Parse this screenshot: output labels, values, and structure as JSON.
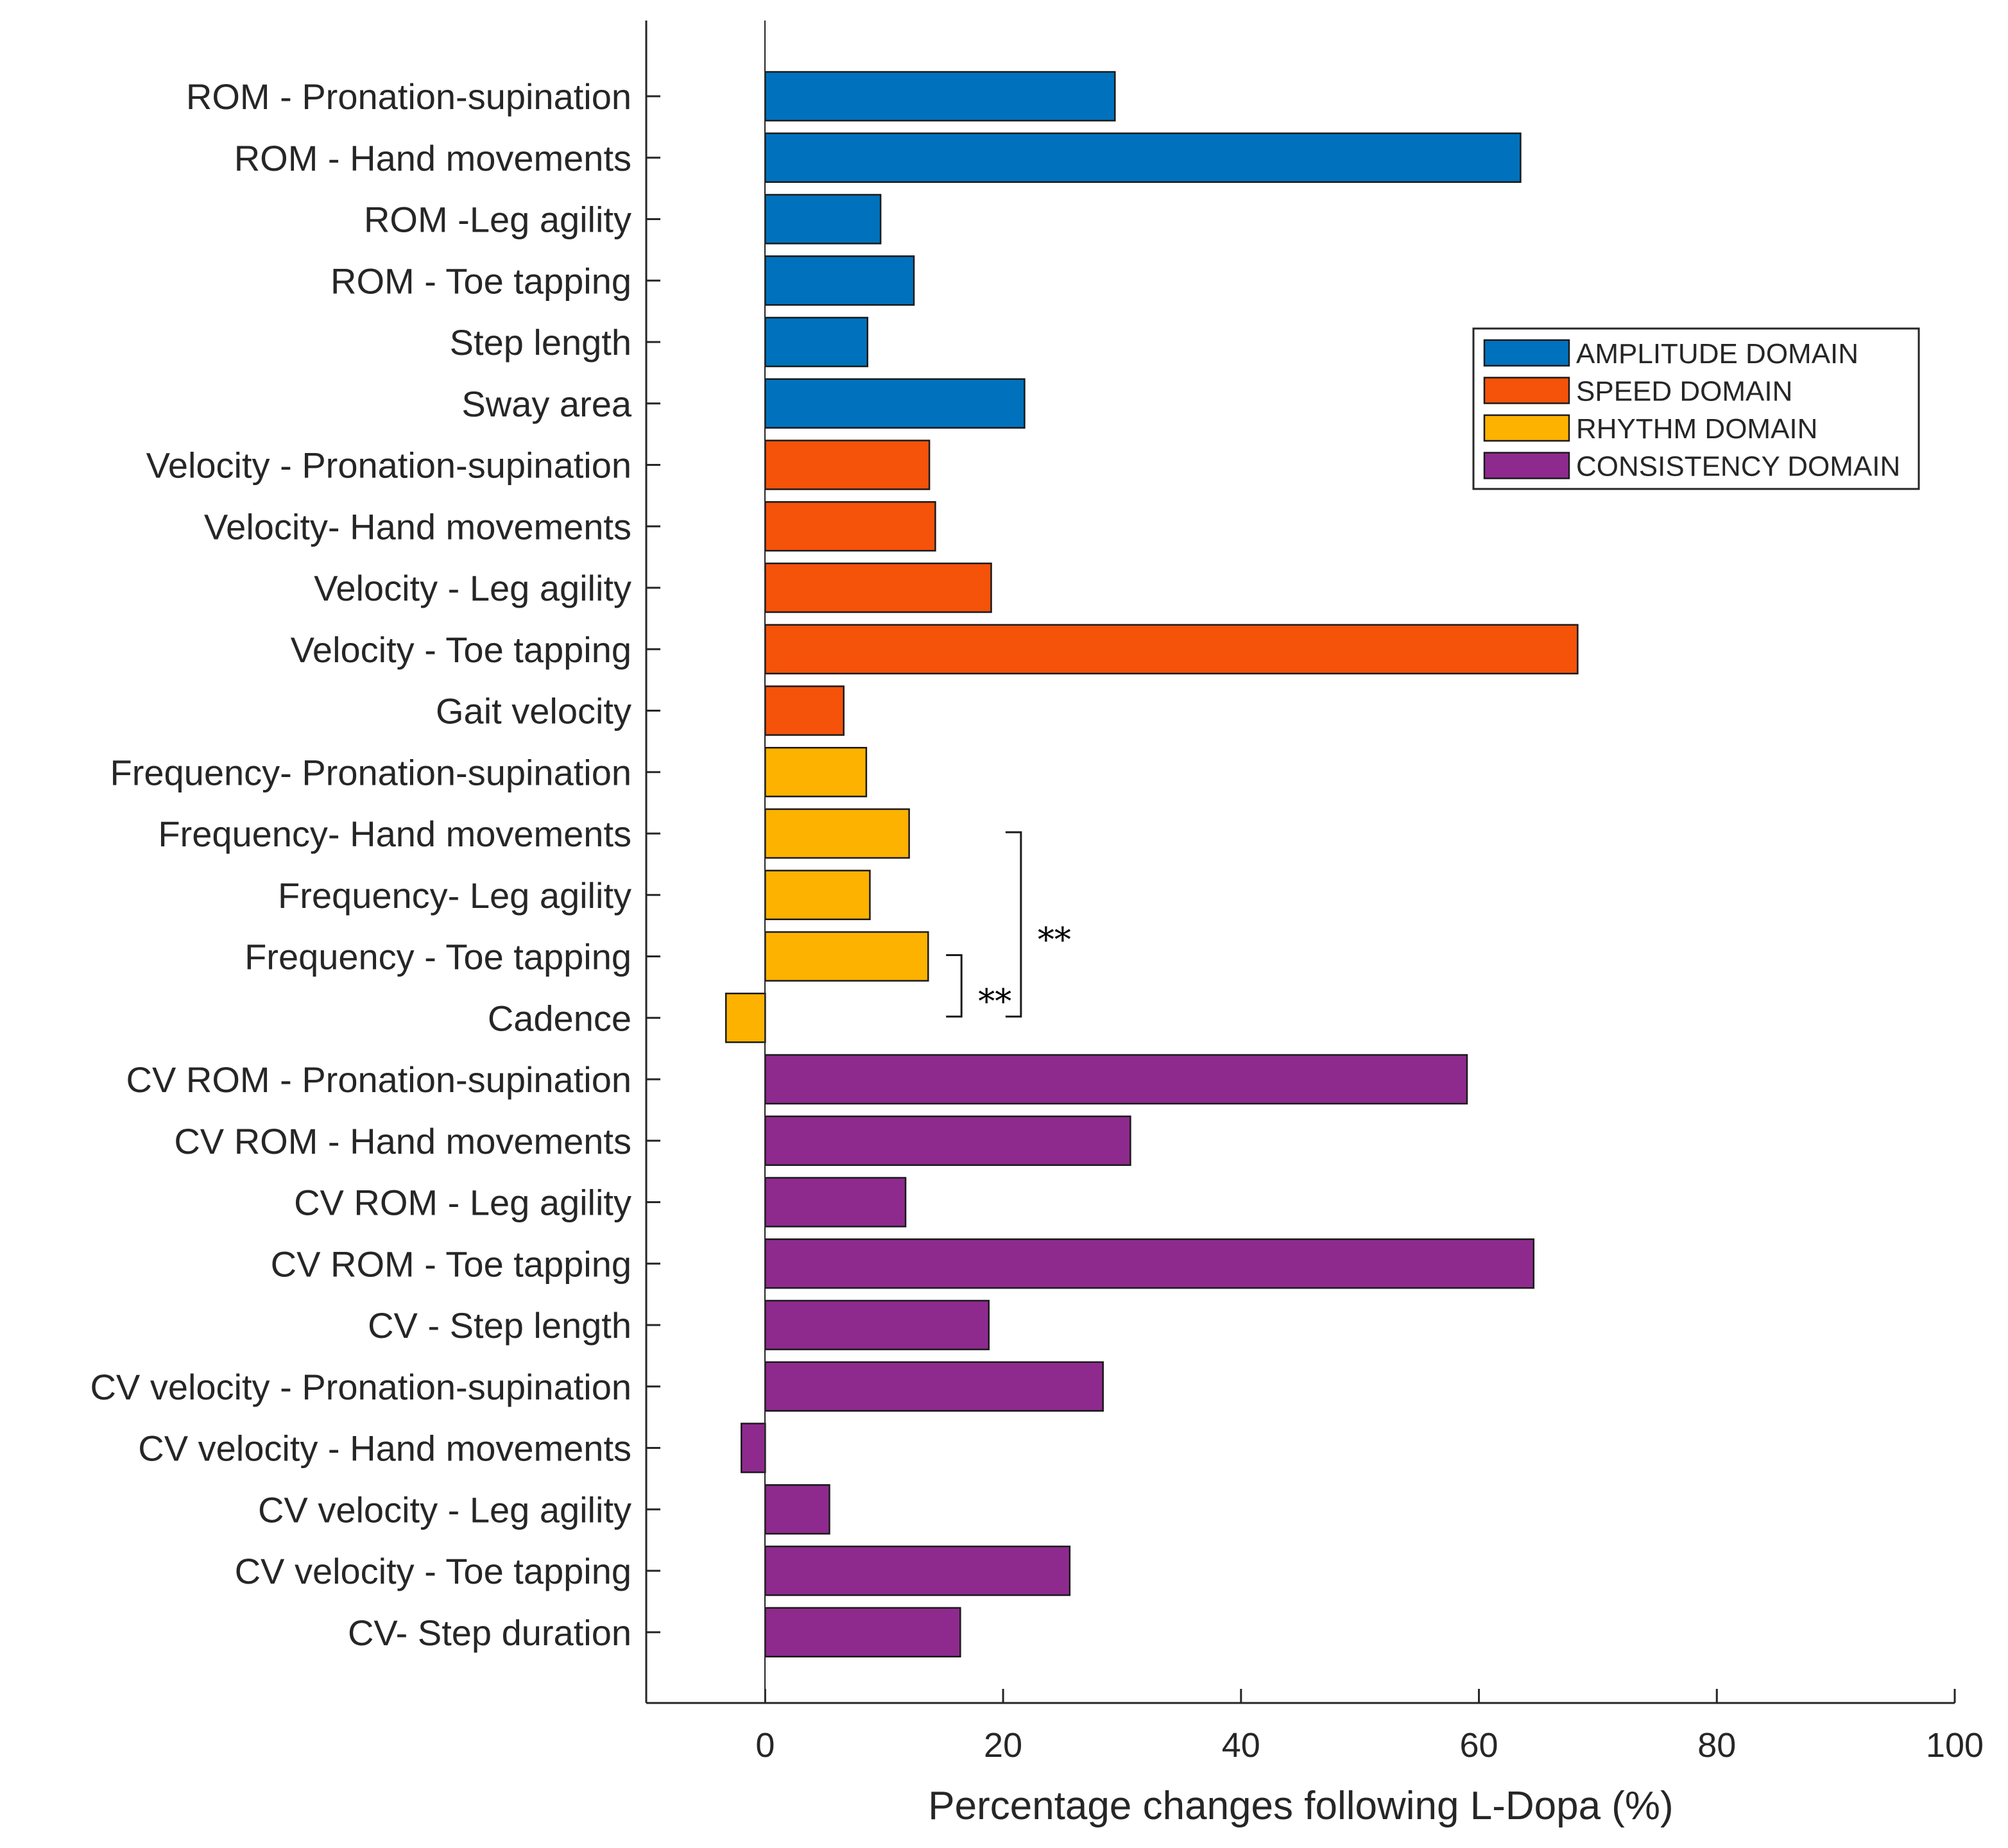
{
  "chart_data": {
    "type": "bar",
    "orientation": "horizontal",
    "title": "",
    "xlabel": "Percentage changes following L-Dopa (%)",
    "ylabel": "",
    "xlim": [
      -10,
      100
    ],
    "xticks": [
      0,
      20,
      40,
      60,
      80,
      100
    ],
    "grid": false,
    "legend_position": "top-right",
    "domains": [
      {
        "key": "amplitude",
        "name": "AMPLITUDE DOMAIN",
        "color": "#0072BD"
      },
      {
        "key": "speed",
        "name": "SPEED DOMAIN",
        "color": "#F5520A"
      },
      {
        "key": "rhythm",
        "name": "RHYTHM DOMAIN",
        "color": "#FDB200"
      },
      {
        "key": "consistency",
        "name": "CONSISTENCY DOMAIN",
        "color": "#8E2A8E"
      }
    ],
    "categories": [
      "ROM - Pronation-supination",
      "ROM - Hand movements",
      "ROM -Leg agility",
      "ROM - Toe tapping",
      "Step length",
      "Sway area",
      "Velocity - Pronation-supination",
      "Velocity- Hand movements",
      "Velocity - Leg agility",
      "Velocity - Toe tapping",
      "Gait velocity",
      "Frequency- Pronation-supination",
      "Frequency- Hand movements",
      "Frequency- Leg agility",
      "Frequency - Toe tapping",
      "Cadence",
      "CV ROM - Pronation-supination",
      "CV ROM - Hand movements",
      "CV ROM - Leg agility",
      "CV ROM - Toe tapping",
      "CV - Step length",
      "CV velocity - Pronation-supination",
      "CV velocity - Hand movements",
      "CV velocity - Leg agility",
      "CV velocity - Toe tapping",
      "CV- Step duration"
    ],
    "values": [
      29.4,
      63.5,
      9.7,
      12.5,
      8.6,
      21.8,
      13.8,
      14.3,
      19.0,
      68.3,
      6.6,
      8.5,
      12.1,
      8.8,
      13.7,
      -3.3,
      59.0,
      30.7,
      11.8,
      64.6,
      18.8,
      28.4,
      -2.0,
      5.4,
      25.6,
      16.4
    ],
    "groups": [
      "amplitude",
      "amplitude",
      "amplitude",
      "amplitude",
      "amplitude",
      "amplitude",
      "speed",
      "speed",
      "speed",
      "speed",
      "speed",
      "rhythm",
      "rhythm",
      "rhythm",
      "rhythm",
      "rhythm",
      "consistency",
      "consistency",
      "consistency",
      "consistency",
      "consistency",
      "consistency",
      "consistency",
      "consistency",
      "consistency",
      "consistency"
    ],
    "annotations": [
      {
        "type": "bracket",
        "from": "Frequency- Hand movements",
        "to": "Cadence",
        "x_value": 21.5,
        "label": "**"
      },
      {
        "type": "bracket",
        "from": "Frequency - Toe tapping",
        "to": "Cadence",
        "x_value": 16.5,
        "label": "**"
      }
    ]
  }
}
